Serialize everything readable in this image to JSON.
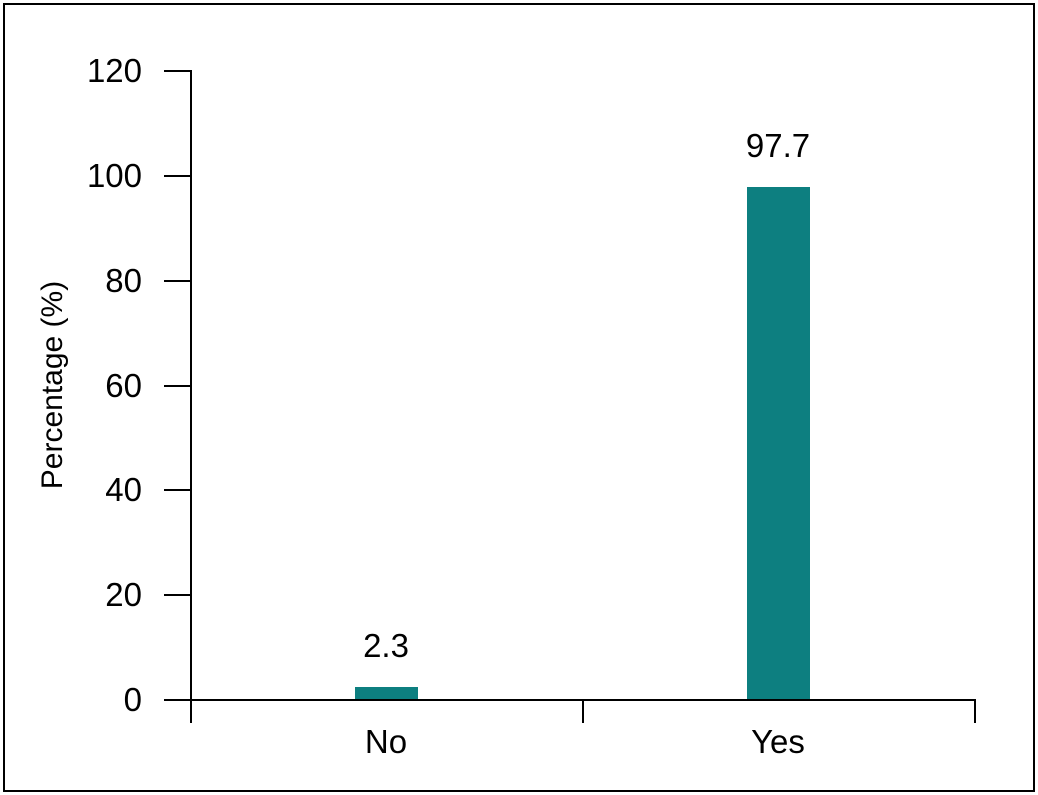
{
  "chart_data": {
    "type": "bar",
    "categories": [
      "No",
      "Yes"
    ],
    "values": [
      2.3,
      97.7
    ],
    "data_labels": [
      "2.3",
      "97.7"
    ],
    "title": "",
    "xlabel": "",
    "ylabel": "Percentage (%)",
    "ylim": [
      0,
      120
    ],
    "yticks": [
      0,
      20,
      40,
      60,
      80,
      100,
      120
    ],
    "grid": false,
    "legend": false,
    "bar_color": "#0d7f80",
    "axis_color": "#000000",
    "text_color": "#000000",
    "background_color": "#ffffff",
    "border_color": "#000000"
  }
}
